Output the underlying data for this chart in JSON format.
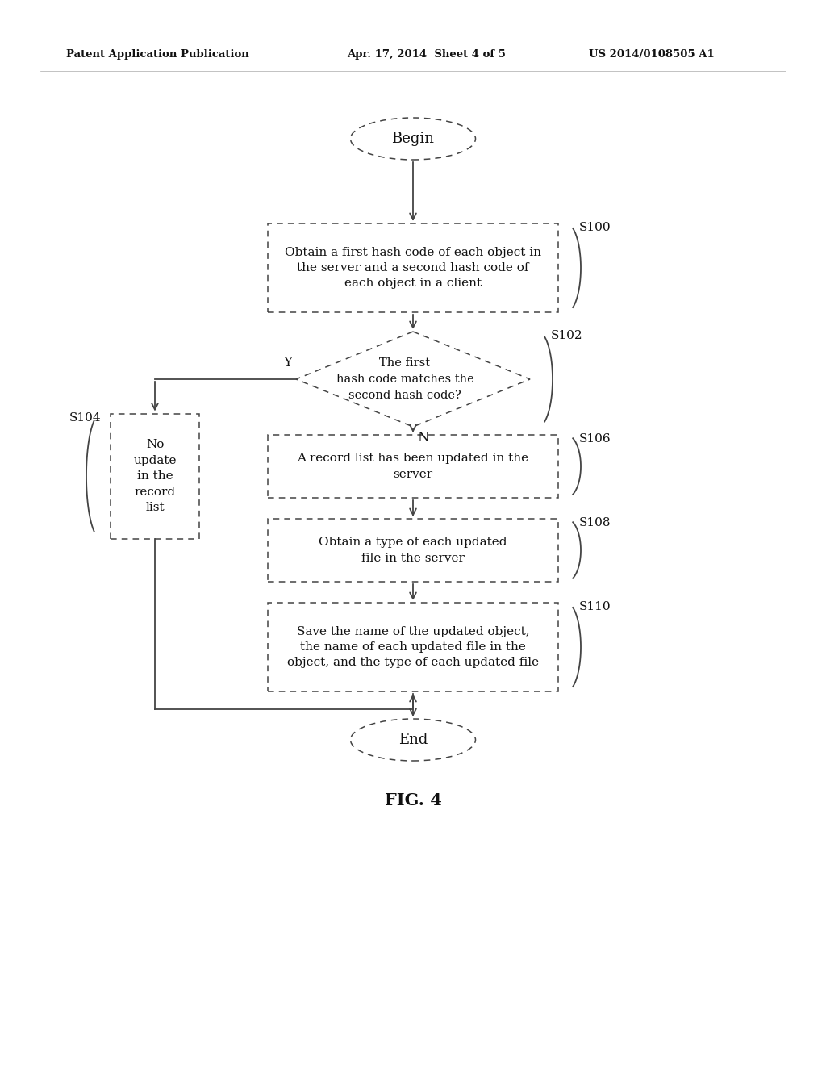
{
  "header_left": "Patent Application Publication",
  "header_mid": "Apr. 17, 2014  Sheet 4 of 5",
  "header_right": "US 2014/0108505 A1",
  "fig_label": "FIG. 4",
  "background_color": "#ffffff",
  "line_color": "#444444",
  "text_color": "#111111",
  "begin_text": "Begin",
  "end_text": "End",
  "s100_text": "Obtain a first hash code of each object in\nthe server and a second hash code of\neach object in a client",
  "s100_label": "S100",
  "s102_text": "The first\nhash code matches the\nsecond hash code?",
  "s102_label": "S102",
  "s104_text": "No\nupdate\nin the\nrecord\nlist",
  "s104_label": "S104",
  "s106_text": "A record list has been updated in the\nserver",
  "s106_label": "S106",
  "s108_text": "Obtain a type of each updated\nfile in the server",
  "s108_label": "S108",
  "s110_text": "Save the name of the updated object,\nthe name of each updated file in the\nobject, and the type of each updated file",
  "s110_label": "S110",
  "y_label": "Y",
  "n_label": "N"
}
